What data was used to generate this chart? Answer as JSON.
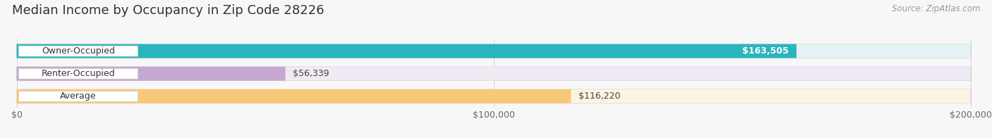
{
  "title": "Median Income by Occupancy in Zip Code 28226",
  "source": "Source: ZipAtlas.com",
  "categories": [
    "Owner-Occupied",
    "Renter-Occupied",
    "Average"
  ],
  "values": [
    163505,
    56339,
    116220
  ],
  "labels": [
    "$163,505",
    "$56,339",
    "$116,220"
  ],
  "bar_colors": [
    "#2ab5bc",
    "#c4a8d0",
    "#f8c87a"
  ],
  "bar_bg_colors": [
    "#e4f4f5",
    "#f0eaf5",
    "#fdf3e3"
  ],
  "label_inside": [
    true,
    false,
    false
  ],
  "xlim_max": 200000,
  "xticks": [
    0,
    100000,
    200000
  ],
  "xtick_labels": [
    "$0",
    "$100,000",
    "$200,000"
  ],
  "background_color": "#f7f7f7",
  "bar_height": 0.62,
  "title_fontsize": 13,
  "label_fontsize": 9,
  "cat_fontsize": 9,
  "tick_fontsize": 9,
  "source_fontsize": 8.5
}
